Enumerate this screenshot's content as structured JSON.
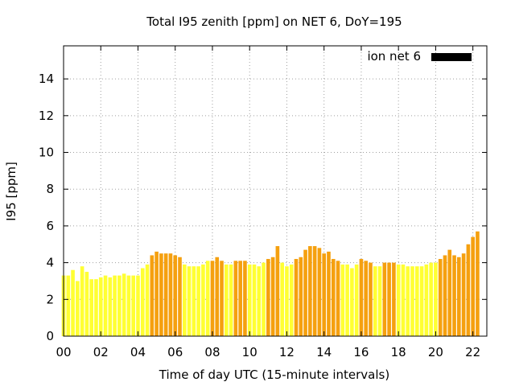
{
  "chart_data": {
    "type": "bar",
    "title": "Total I95 zenith [ppm] on NET 6, DoY=195",
    "xlabel": "Time of day UTC (15-minute intervals)",
    "ylabel": "I95 [ppm]",
    "xlim": [
      0,
      22.75
    ],
    "ylim": [
      0,
      15.8
    ],
    "xticks": [
      "00",
      "02",
      "04",
      "06",
      "08",
      "10",
      "12",
      "14",
      "16",
      "18",
      "20",
      "22"
    ],
    "xtick_values": [
      0,
      2,
      4,
      6,
      8,
      10,
      12,
      14,
      16,
      18,
      20,
      22
    ],
    "yticks": [
      "0",
      "2",
      "4",
      "6",
      "8",
      "10",
      "12",
      "14"
    ],
    "ytick_values": [
      0,
      2,
      4,
      6,
      8,
      10,
      12,
      14
    ],
    "grid": true,
    "legend": {
      "label": "ion net 6",
      "color": "#000000",
      "placement": "top-right"
    },
    "colors": {
      "low": "#ffff33",
      "high": "#f5a00f"
    },
    "series": [
      {
        "interval_hours": 0.25,
        "values": [
          3.3,
          3.3,
          3.6,
          3.0,
          3.8,
          3.5,
          3.1,
          3.1,
          3.2,
          3.3,
          3.2,
          3.3,
          3.3,
          3.4,
          3.3,
          3.3,
          3.3,
          3.7,
          3.9,
          4.4,
          4.6,
          4.5,
          4.5,
          4.5,
          4.4,
          4.3,
          3.9,
          3.8,
          3.8,
          3.8,
          3.9,
          4.1,
          4.1,
          4.3,
          4.1,
          3.9,
          3.9,
          4.1,
          4.1,
          4.1,
          3.9,
          3.9,
          3.8,
          4.0,
          4.2,
          4.3,
          4.9,
          4.0,
          3.8,
          3.9,
          4.2,
          4.3,
          4.7,
          4.9,
          4.9,
          4.8,
          4.5,
          4.6,
          4.2,
          4.1,
          3.9,
          3.9,
          3.7,
          3.9,
          4.2,
          4.1,
          4.0,
          3.8,
          3.8,
          4.0,
          4.0,
          4.0,
          3.9,
          3.9,
          3.8,
          3.8,
          3.8,
          3.8,
          3.9,
          4.0,
          4.0,
          4.2,
          4.4,
          4.7,
          4.4,
          4.3,
          4.5,
          5.0,
          5.4,
          5.7
        ],
        "levels": [
          "low",
          "low",
          "low",
          "low",
          "low",
          "low",
          "low",
          "low",
          "low",
          "low",
          "low",
          "low",
          "low",
          "low",
          "low",
          "low",
          "low",
          "low",
          "low",
          "high",
          "high",
          "high",
          "high",
          "high",
          "high",
          "high",
          "low",
          "low",
          "low",
          "low",
          "low",
          "low",
          "high",
          "high",
          "high",
          "low",
          "low",
          "high",
          "high",
          "high",
          "low",
          "low",
          "low",
          "low",
          "high",
          "high",
          "high",
          "low",
          "low",
          "low",
          "high",
          "high",
          "high",
          "high",
          "high",
          "high",
          "high",
          "high",
          "high",
          "high",
          "low",
          "low",
          "low",
          "low",
          "high",
          "high",
          "high",
          "low",
          "low",
          "high",
          "high",
          "high",
          "low",
          "low",
          "low",
          "low",
          "low",
          "low",
          "low",
          "low",
          "low",
          "high",
          "high",
          "high",
          "high",
          "high",
          "high",
          "high",
          "high",
          "high"
        ]
      }
    ]
  }
}
